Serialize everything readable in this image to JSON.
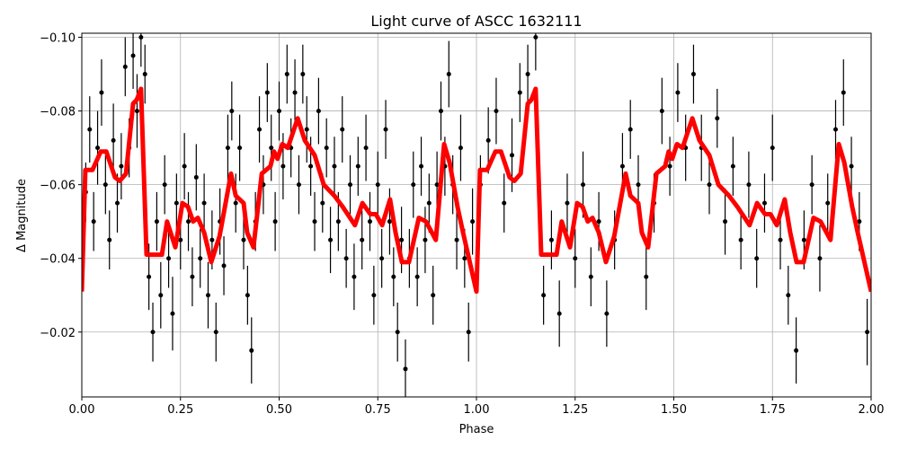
{
  "chart_data": {
    "type": "scatter",
    "title": "Light curve of ASCC 1632111",
    "xlabel": "Phase",
    "ylabel": "Δ Magnitude",
    "xlim": [
      0,
      2
    ],
    "ylim": [
      -0.1011,
      -0.0024
    ],
    "y_inverted": true,
    "grid": true,
    "xticks": [
      "0.00",
      "0.25",
      "0.50",
      "0.75",
      "1.00",
      "1.25",
      "1.50",
      "1.75",
      "2.00"
    ],
    "xtick_values": [
      0,
      0.25,
      0.5,
      0.75,
      1,
      1.25,
      1.5,
      1.75,
      2
    ],
    "yticks": [
      "−0.10",
      "−0.08",
      "−0.06",
      "−0.04",
      "−0.02"
    ],
    "ytick_values": [
      -0.1,
      -0.08,
      -0.06,
      -0.04,
      -0.02
    ],
    "colors": {
      "points": "#000000",
      "model": "#ff0000",
      "grid": "#b0b0b0"
    },
    "points": [
      [
        0.01,
        -0.058,
        0.008
      ],
      [
        0.02,
        -0.075,
        0.009
      ],
      [
        0.03,
        -0.05,
        0.008
      ],
      [
        0.04,
        -0.07,
        0.01
      ],
      [
        0.05,
        -0.085,
        0.009
      ],
      [
        0.06,
        -0.06,
        0.008
      ],
      [
        0.07,
        -0.045,
        0.008
      ],
      [
        0.08,
        -0.072,
        0.01
      ],
      [
        0.09,
        -0.055,
        0.008
      ],
      [
        0.1,
        -0.065,
        0.009
      ],
      [
        0.11,
        -0.092,
        0.008
      ],
      [
        0.12,
        -0.07,
        0.008
      ],
      [
        0.13,
        -0.095,
        0.009
      ],
      [
        0.14,
        -0.08,
        0.01
      ],
      [
        0.15,
        -0.1,
        0.008
      ],
      [
        0.16,
        -0.09,
        0.008
      ],
      [
        0.17,
        -0.035,
        0.009
      ],
      [
        0.18,
        -0.02,
        0.008
      ],
      [
        0.19,
        -0.05,
        0.008
      ],
      [
        0.2,
        -0.03,
        0.009
      ],
      [
        0.21,
        -0.06,
        0.008
      ],
      [
        0.22,
        -0.04,
        0.008
      ],
      [
        0.23,
        -0.025,
        0.01
      ],
      [
        0.24,
        -0.055,
        0.008
      ],
      [
        0.25,
        -0.045,
        0.008
      ],
      [
        0.26,
        -0.065,
        0.009
      ],
      [
        0.27,
        -0.05,
        0.008
      ],
      [
        0.28,
        -0.035,
        0.008
      ],
      [
        0.29,
        -0.062,
        0.009
      ],
      [
        0.3,
        -0.04,
        0.008
      ],
      [
        0.31,
        -0.055,
        0.008
      ],
      [
        0.32,
        -0.03,
        0.009
      ],
      [
        0.33,
        -0.045,
        0.008
      ],
      [
        0.34,
        -0.02,
        0.008
      ],
      [
        0.35,
        -0.05,
        0.009
      ],
      [
        0.36,
        -0.038,
        0.008
      ],
      [
        0.37,
        -0.07,
        0.009
      ],
      [
        0.38,
        -0.08,
        0.008
      ],
      [
        0.39,
        -0.055,
        0.008
      ],
      [
        0.4,
        -0.07,
        0.009
      ],
      [
        0.41,
        -0.045,
        0.008
      ],
      [
        0.42,
        -0.03,
        0.008
      ],
      [
        0.43,
        -0.015,
        0.009
      ],
      [
        0.44,
        -0.05,
        0.008
      ],
      [
        0.45,
        -0.075,
        0.009
      ],
      [
        0.46,
        -0.06,
        0.008
      ],
      [
        0.47,
        -0.085,
        0.008
      ],
      [
        0.48,
        -0.07,
        0.009
      ],
      [
        0.49,
        -0.05,
        0.008
      ],
      [
        0.5,
        -0.08,
        0.008
      ],
      [
        0.51,
        -0.065,
        0.009
      ],
      [
        0.52,
        -0.09,
        0.008
      ],
      [
        0.53,
        -0.07,
        0.008
      ],
      [
        0.54,
        -0.085,
        0.009
      ],
      [
        0.55,
        -0.06,
        0.008
      ],
      [
        0.56,
        -0.09,
        0.008
      ],
      [
        0.57,
        -0.075,
        0.009
      ],
      [
        0.58,
        -0.065,
        0.008
      ],
      [
        0.59,
        -0.05,
        0.008
      ],
      [
        0.6,
        -0.08,
        0.009
      ],
      [
        0.61,
        -0.055,
        0.008
      ],
      [
        0.62,
        -0.07,
        0.008
      ],
      [
        0.63,
        -0.045,
        0.009
      ],
      [
        0.64,
        -0.065,
        0.008
      ],
      [
        0.65,
        -0.05,
        0.008
      ],
      [
        0.66,
        -0.075,
        0.009
      ],
      [
        0.67,
        -0.04,
        0.008
      ],
      [
        0.68,
        -0.06,
        0.008
      ],
      [
        0.69,
        -0.035,
        0.009
      ],
      [
        0.7,
        -0.065,
        0.008
      ],
      [
        0.71,
        -0.045,
        0.008
      ],
      [
        0.72,
        -0.07,
        0.009
      ],
      [
        0.73,
        -0.05,
        0.008
      ],
      [
        0.74,
        -0.03,
        0.008
      ],
      [
        0.75,
        -0.06,
        0.009
      ],
      [
        0.76,
        -0.04,
        0.008
      ],
      [
        0.77,
        -0.075,
        0.008
      ],
      [
        0.78,
        -0.05,
        0.009
      ],
      [
        0.79,
        -0.035,
        0.008
      ],
      [
        0.8,
        -0.02,
        0.008
      ],
      [
        0.81,
        -0.045,
        0.009
      ],
      [
        0.82,
        -0.01,
        0.008
      ],
      [
        0.83,
        -0.04,
        0.008
      ],
      [
        0.84,
        -0.06,
        0.009
      ],
      [
        0.85,
        -0.035,
        0.008
      ],
      [
        0.86,
        -0.065,
        0.008
      ],
      [
        0.87,
        -0.045,
        0.009
      ],
      [
        0.88,
        -0.055,
        0.008
      ],
      [
        0.89,
        -0.03,
        0.008
      ],
      [
        0.9,
        -0.06,
        0.009
      ],
      [
        0.91,
        -0.08,
        0.008
      ],
      [
        0.92,
        -0.065,
        0.008
      ],
      [
        0.93,
        -0.09,
        0.009
      ],
      [
        0.94,
        -0.06,
        0.008
      ],
      [
        0.95,
        -0.045,
        0.008
      ],
      [
        0.96,
        -0.07,
        0.009
      ],
      [
        0.97,
        -0.04,
        0.008
      ],
      [
        0.98,
        -0.02,
        0.008
      ],
      [
        0.99,
        -0.05,
        0.009
      ],
      [
        1.01,
        -0.06,
        0.008
      ],
      [
        1.03,
        -0.072,
        0.009
      ],
      [
        1.05,
        -0.08,
        0.009
      ],
      [
        1.07,
        -0.055,
        0.008
      ],
      [
        1.09,
        -0.068,
        0.01
      ],
      [
        1.11,
        -0.085,
        0.008
      ],
      [
        1.13,
        -0.09,
        0.008
      ],
      [
        1.15,
        -0.1,
        0.009
      ],
      [
        1.17,
        -0.03,
        0.008
      ],
      [
        1.19,
        -0.045,
        0.008
      ],
      [
        1.21,
        -0.025,
        0.009
      ],
      [
        1.23,
        -0.055,
        0.008
      ],
      [
        1.25,
        -0.04,
        0.008
      ],
      [
        1.27,
        -0.06,
        0.009
      ],
      [
        1.29,
        -0.035,
        0.008
      ],
      [
        1.31,
        -0.05,
        0.008
      ],
      [
        1.33,
        -0.025,
        0.009
      ],
      [
        1.35,
        -0.045,
        0.008
      ],
      [
        1.37,
        -0.065,
        0.009
      ],
      [
        1.39,
        -0.075,
        0.008
      ],
      [
        1.41,
        -0.06,
        0.008
      ],
      [
        1.43,
        -0.035,
        0.009
      ],
      [
        1.45,
        -0.055,
        0.008
      ],
      [
        1.47,
        -0.08,
        0.009
      ],
      [
        1.49,
        -0.065,
        0.008
      ],
      [
        1.51,
        -0.085,
        0.008
      ],
      [
        1.53,
        -0.07,
        0.009
      ],
      [
        1.55,
        -0.09,
        0.008
      ],
      [
        1.57,
        -0.07,
        0.009
      ],
      [
        1.59,
        -0.06,
        0.008
      ],
      [
        1.61,
        -0.078,
        0.008
      ],
      [
        1.63,
        -0.05,
        0.009
      ],
      [
        1.65,
        -0.065,
        0.008
      ],
      [
        1.67,
        -0.045,
        0.008
      ],
      [
        1.69,
        -0.06,
        0.009
      ],
      [
        1.71,
        -0.04,
        0.008
      ],
      [
        1.73,
        -0.055,
        0.008
      ],
      [
        1.75,
        -0.07,
        0.009
      ],
      [
        1.77,
        -0.045,
        0.008
      ],
      [
        1.79,
        -0.03,
        0.008
      ],
      [
        1.81,
        -0.015,
        0.009
      ],
      [
        1.83,
        -0.045,
        0.008
      ],
      [
        1.85,
        -0.06,
        0.008
      ],
      [
        1.87,
        -0.04,
        0.009
      ],
      [
        1.89,
        -0.055,
        0.008
      ],
      [
        1.91,
        -0.075,
        0.008
      ],
      [
        1.93,
        -0.085,
        0.009
      ],
      [
        1.95,
        -0.065,
        0.008
      ],
      [
        1.97,
        -0.05,
        0.008
      ],
      [
        1.99,
        -0.02,
        0.009
      ]
    ],
    "model": [
      [
        0.0,
        -0.031
      ],
      [
        0.009,
        -0.064
      ],
      [
        0.027,
        -0.064
      ],
      [
        0.048,
        -0.069
      ],
      [
        0.062,
        -0.069
      ],
      [
        0.084,
        -0.062
      ],
      [
        0.096,
        -0.061
      ],
      [
        0.112,
        -0.063
      ],
      [
        0.13,
        -0.082
      ],
      [
        0.139,
        -0.083
      ],
      [
        0.15,
        -0.086
      ],
      [
        0.164,
        -0.041
      ],
      [
        0.191,
        -0.041
      ],
      [
        0.203,
        -0.041
      ],
      [
        0.216,
        -0.05
      ],
      [
        0.237,
        -0.043
      ],
      [
        0.255,
        -0.055
      ],
      [
        0.269,
        -0.054
      ],
      [
        0.282,
        -0.05
      ],
      [
        0.294,
        -0.051
      ],
      [
        0.31,
        -0.047
      ],
      [
        0.328,
        -0.039
      ],
      [
        0.349,
        -0.046
      ],
      [
        0.378,
        -0.063
      ],
      [
        0.39,
        -0.057
      ],
      [
        0.41,
        -0.055
      ],
      [
        0.419,
        -0.047
      ],
      [
        0.435,
        -0.043
      ],
      [
        0.456,
        -0.063
      ],
      [
        0.478,
        -0.065
      ],
      [
        0.487,
        -0.069
      ],
      [
        0.496,
        -0.067
      ],
      [
        0.508,
        -0.071
      ],
      [
        0.522,
        -0.07
      ],
      [
        0.547,
        -0.078
      ],
      [
        0.565,
        -0.072
      ],
      [
        0.59,
        -0.068
      ],
      [
        0.613,
        -0.06
      ],
      [
        0.64,
        -0.057
      ],
      [
        0.661,
        -0.054
      ],
      [
        0.692,
        -0.049
      ],
      [
        0.711,
        -0.055
      ],
      [
        0.731,
        -0.052
      ],
      [
        0.745,
        -0.052
      ],
      [
        0.761,
        -0.049
      ],
      [
        0.781,
        -0.056
      ],
      [
        0.795,
        -0.047
      ],
      [
        0.811,
        -0.039
      ],
      [
        0.829,
        -0.039
      ],
      [
        0.854,
        -0.051
      ],
      [
        0.872,
        -0.05
      ],
      [
        0.897,
        -0.045
      ],
      [
        0.918,
        -0.071
      ],
      [
        0.932,
        -0.066
      ],
      [
        0.952,
        -0.054
      ],
      [
        0.966,
        -0.047
      ],
      [
        1.0,
        -0.031
      ],
      [
        1.009,
        -0.064
      ],
      [
        1.027,
        -0.064
      ],
      [
        1.048,
        -0.069
      ],
      [
        1.062,
        -0.069
      ],
      [
        1.084,
        -0.062
      ],
      [
        1.096,
        -0.061
      ],
      [
        1.112,
        -0.063
      ],
      [
        1.13,
        -0.082
      ],
      [
        1.139,
        -0.083
      ],
      [
        1.15,
        -0.086
      ],
      [
        1.164,
        -0.041
      ],
      [
        1.191,
        -0.041
      ],
      [
        1.203,
        -0.041
      ],
      [
        1.216,
        -0.05
      ],
      [
        1.237,
        -0.043
      ],
      [
        1.255,
        -0.055
      ],
      [
        1.269,
        -0.054
      ],
      [
        1.282,
        -0.05
      ],
      [
        1.294,
        -0.051
      ],
      [
        1.31,
        -0.047
      ],
      [
        1.328,
        -0.039
      ],
      [
        1.349,
        -0.046
      ],
      [
        1.378,
        -0.063
      ],
      [
        1.39,
        -0.057
      ],
      [
        1.41,
        -0.055
      ],
      [
        1.419,
        -0.047
      ],
      [
        1.435,
        -0.043
      ],
      [
        1.456,
        -0.063
      ],
      [
        1.478,
        -0.065
      ],
      [
        1.487,
        -0.069
      ],
      [
        1.496,
        -0.067
      ],
      [
        1.508,
        -0.071
      ],
      [
        1.522,
        -0.07
      ],
      [
        1.547,
        -0.078
      ],
      [
        1.565,
        -0.072
      ],
      [
        1.59,
        -0.068
      ],
      [
        1.613,
        -0.06
      ],
      [
        1.64,
        -0.057
      ],
      [
        1.661,
        -0.054
      ],
      [
        1.692,
        -0.049
      ],
      [
        1.711,
        -0.055
      ],
      [
        1.731,
        -0.052
      ],
      [
        1.745,
        -0.052
      ],
      [
        1.761,
        -0.049
      ],
      [
        1.781,
        -0.056
      ],
      [
        1.795,
        -0.047
      ],
      [
        1.811,
        -0.039
      ],
      [
        1.829,
        -0.039
      ],
      [
        1.854,
        -0.051
      ],
      [
        1.872,
        -0.05
      ],
      [
        1.897,
        -0.045
      ],
      [
        1.918,
        -0.071
      ],
      [
        1.932,
        -0.066
      ],
      [
        1.952,
        -0.054
      ],
      [
        1.966,
        -0.047
      ],
      [
        2.0,
        -0.031
      ]
    ]
  }
}
